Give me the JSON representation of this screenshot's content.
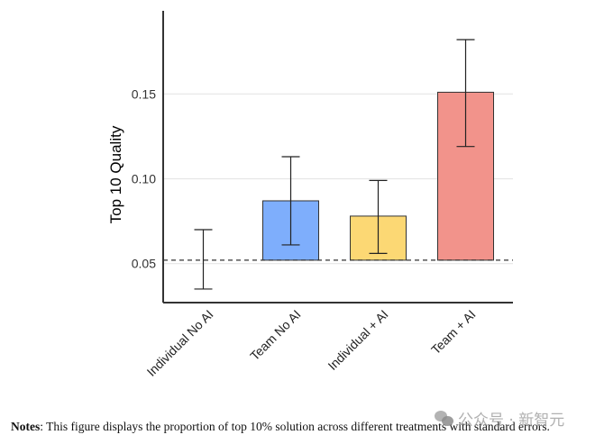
{
  "chart_data": {
    "type": "bar",
    "title": "",
    "xlabel": "",
    "ylabel": "Top 10 Quality",
    "ylim": [
      0.027,
      0.199
    ],
    "yticks": [
      0.05,
      0.1,
      0.15
    ],
    "ytick_labels": [
      "0.05",
      "0.10",
      "0.15"
    ],
    "grid": "horizontal",
    "baseline": 0.052,
    "baseline_style": "dashed",
    "categories": [
      "Individual No AI",
      "Team No AI",
      "Individual + AI",
      "Team + AI"
    ],
    "values": [
      0.052,
      0.087,
      0.078,
      0.151
    ],
    "error_lower": [
      0.035,
      0.061,
      0.056,
      0.119
    ],
    "error_upper": [
      0.07,
      0.113,
      0.099,
      0.182
    ],
    "bar_colors": [
      "none",
      "#7eaefc",
      "#fcd874",
      "#f2938b"
    ],
    "legend": "none",
    "tick_label_rotation": -45
  },
  "notes": {
    "label": "Notes",
    "text": ": This figure displays the proportion of top 10% solution across different treatments with standard errors."
  },
  "watermark": {
    "icon": "wechat-icon",
    "text": "公众号 · 新智元"
  }
}
